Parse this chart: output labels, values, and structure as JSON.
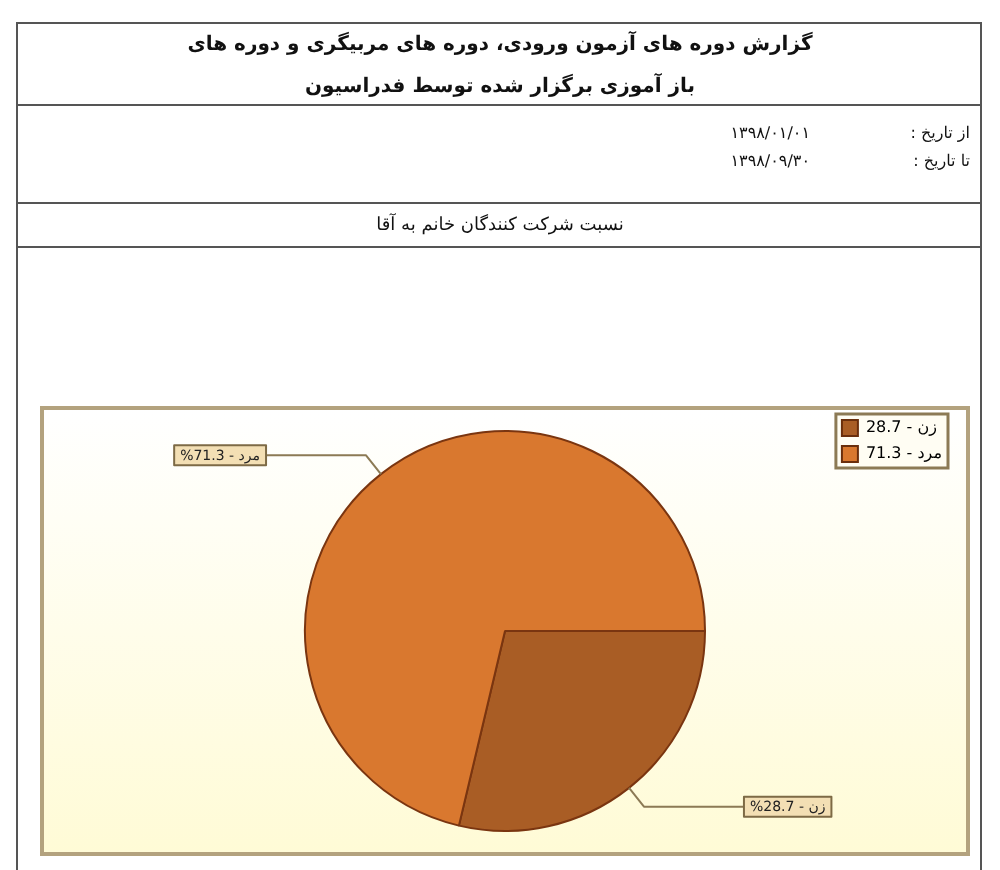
{
  "chart_data": {
    "type": "pie",
    "title": "گزارش دوره های آزمون ورودی، دوره های مربیگری و دوره های باز آموزی برگزار شده توسط فدراسیون",
    "subtitle": "نسبت شرکت کنندگان خانم به آقا",
    "annotations": [
      "از تاریخ :",
      "۱۳۹۸/۰۱/۰۱",
      "تا تاریخ :",
      "۱۳۹۸/۰۹/۳۰",
      {
        "text": "زن - 28.7%",
        "x": "زن - 28.7"
      },
      {
        "text": "مرد - 71.3%",
        "x": "مرد - 71.3"
      }
    ],
    "categories": [
      "زن - 28.7",
      "مرد - 71.3"
    ],
    "values": [
      28.7,
      71.3
    ],
    "colors": [
      "#a95d25",
      "#d9782f"
    ],
    "legend": "top right"
  }
}
